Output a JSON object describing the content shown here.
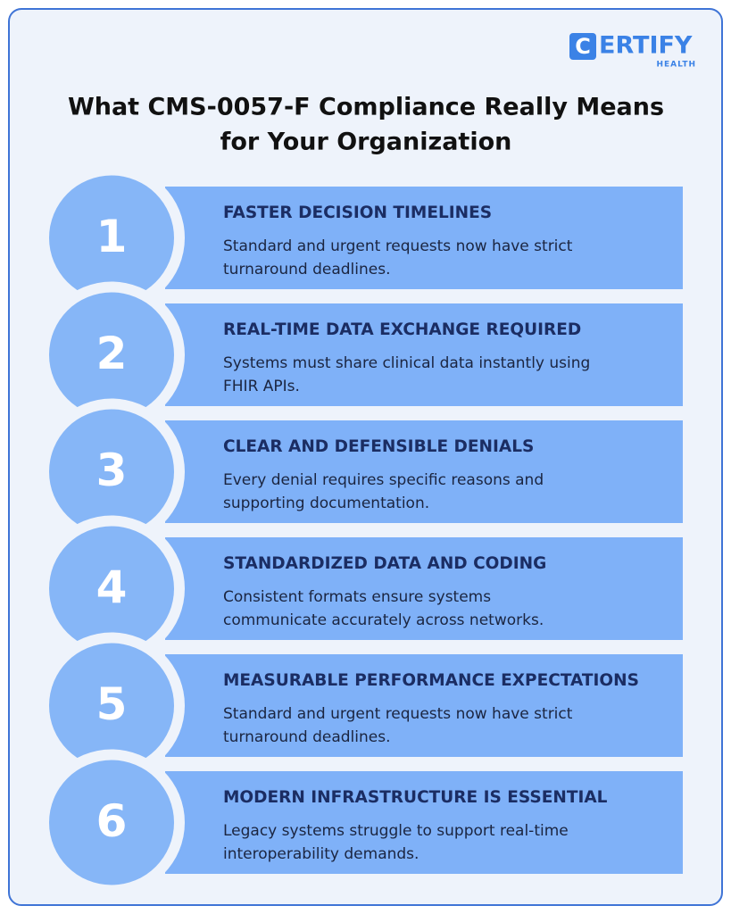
{
  "logo": {
    "mark": "C",
    "text": "ERTIFY",
    "subtext": "HEALTH"
  },
  "header": {
    "title": [
      "What CMS-0057-F Compliance Really Means",
      "for Your Organization"
    ]
  },
  "items": [
    {
      "number": 1,
      "heading": "FASTER DECISION TIMELINES",
      "description": [
        "Standard and urgent requests now have strict",
        "turnaround deadlines."
      ]
    },
    {
      "number": 2,
      "heading": "REAL-TIME DATA EXCHANGE REQUIRED",
      "description": [
        "Systems must share clinical data instantly using",
        "FHIR APIs."
      ]
    },
    {
      "number": 3,
      "heading": "CLEAR AND DEFENSIBLE DENIALS",
      "description": [
        "Every denial requires specific reasons and",
        "supporting documentation."
      ]
    },
    {
      "number": 4,
      "heading": "STANDARDIZED DATA AND CODING",
      "description": [
        "Consistent formats ensure systems",
        "communicate accurately across networks."
      ]
    },
    {
      "number": 5,
      "heading": "MEASURABLE PERFORMANCE EXPECTATIONS",
      "description": [
        "Standard and urgent requests now have strict",
        "turnaround deadlines."
      ]
    },
    {
      "number": 6,
      "heading": "MODERN INFRASTRUCTURE IS ESSENTIAL",
      "description": [
        "Legacy systems struggle to support real-time",
        "interoperability demands."
      ]
    }
  ]
}
